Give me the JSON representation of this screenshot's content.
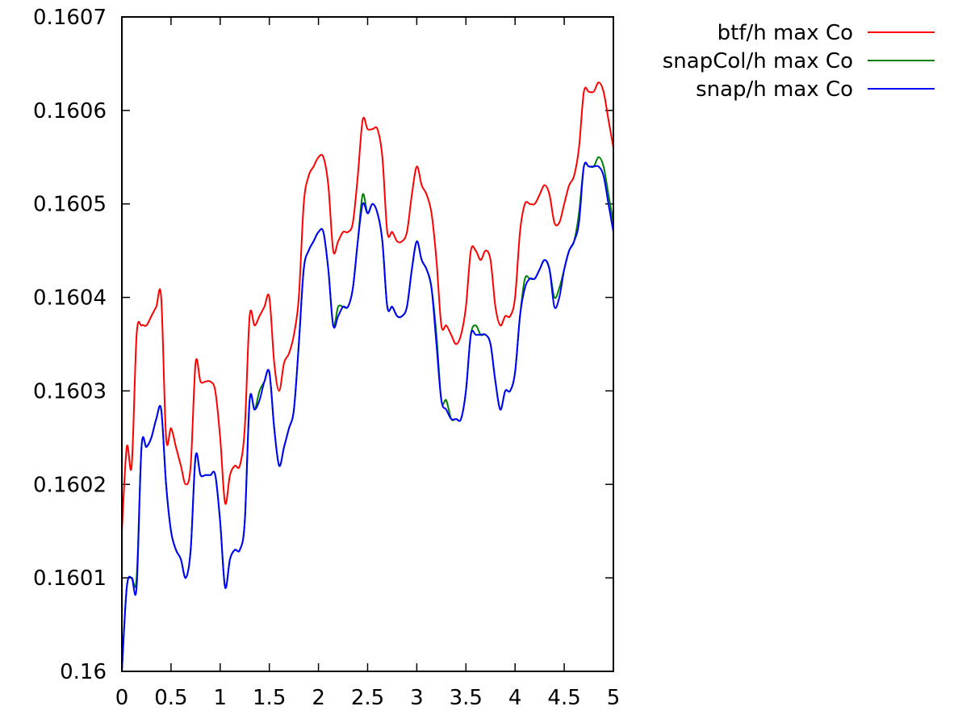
{
  "chart_data": {
    "type": "line",
    "title": "",
    "xlabel": "",
    "ylabel": "",
    "xlim": [
      0,
      5
    ],
    "ylim": [
      0.16,
      0.1607
    ],
    "grid": false,
    "legend_position": "top-right, outside plot",
    "x_ticks": [
      "0",
      "0.5",
      "1",
      "1.5",
      "2",
      "2.5",
      "3",
      "3.5",
      "4",
      "4.5",
      "5"
    ],
    "y_ticks": [
      "0.16",
      "0.1601",
      "0.1602",
      "0.1603",
      "0.1604",
      "0.1605",
      "0.1606",
      "0.1607"
    ],
    "series": [
      {
        "name": "btf/h max Co",
        "color": "#ff0000",
        "points": [
          [
            0.0,
            0.16015
          ],
          [
            0.05,
            0.16024
          ],
          [
            0.1,
            0.16022
          ],
          [
            0.15,
            0.16036
          ],
          [
            0.2,
            0.16037
          ],
          [
            0.25,
            0.16037
          ],
          [
            0.3,
            0.16038
          ],
          [
            0.35,
            0.16039
          ],
          [
            0.4,
            0.1604
          ],
          [
            0.45,
            0.16025
          ],
          [
            0.5,
            0.16026
          ],
          [
            0.55,
            0.16024
          ],
          [
            0.6,
            0.16022
          ],
          [
            0.65,
            0.1602
          ],
          [
            0.7,
            0.16022
          ],
          [
            0.75,
            0.16033
          ],
          [
            0.8,
            0.16031
          ],
          [
            0.85,
            0.16031
          ],
          [
            0.9,
            0.16031
          ],
          [
            0.95,
            0.1603
          ],
          [
            1.0,
            0.16025
          ],
          [
            1.05,
            0.16018
          ],
          [
            1.1,
            0.16021
          ],
          [
            1.15,
            0.16022
          ],
          [
            1.2,
            0.16022
          ],
          [
            1.25,
            0.16026
          ],
          [
            1.3,
            0.16038
          ],
          [
            1.35,
            0.16037
          ],
          [
            1.4,
            0.16038
          ],
          [
            1.45,
            0.16039
          ],
          [
            1.5,
            0.1604
          ],
          [
            1.55,
            0.16033
          ],
          [
            1.6,
            0.1603
          ],
          [
            1.65,
            0.16033
          ],
          [
            1.7,
            0.16034
          ],
          [
            1.75,
            0.16036
          ],
          [
            1.8,
            0.1604
          ],
          [
            1.85,
            0.1605
          ],
          [
            1.9,
            0.16053
          ],
          [
            1.95,
            0.16054
          ],
          [
            2.0,
            0.16055
          ],
          [
            2.05,
            0.16055
          ],
          [
            2.1,
            0.16052
          ],
          [
            2.15,
            0.16045
          ],
          [
            2.2,
            0.16046
          ],
          [
            2.25,
            0.16047
          ],
          [
            2.3,
            0.16047
          ],
          [
            2.35,
            0.16048
          ],
          [
            2.4,
            0.16053
          ],
          [
            2.45,
            0.16059
          ],
          [
            2.5,
            0.16058
          ],
          [
            2.55,
            0.16058
          ],
          [
            2.6,
            0.16058
          ],
          [
            2.65,
            0.16055
          ],
          [
            2.7,
            0.16047
          ],
          [
            2.75,
            0.16047
          ],
          [
            2.8,
            0.16046
          ],
          [
            2.85,
            0.16046
          ],
          [
            2.9,
            0.16047
          ],
          [
            2.95,
            0.16051
          ],
          [
            3.0,
            0.16054
          ],
          [
            3.05,
            0.16052
          ],
          [
            3.1,
            0.16051
          ],
          [
            3.15,
            0.16049
          ],
          [
            3.2,
            0.16044
          ],
          [
            3.25,
            0.16037
          ],
          [
            3.3,
            0.16037
          ],
          [
            3.35,
            0.16036
          ],
          [
            3.4,
            0.16035
          ],
          [
            3.45,
            0.16036
          ],
          [
            3.5,
            0.16039
          ],
          [
            3.55,
            0.16045
          ],
          [
            3.6,
            0.16045
          ],
          [
            3.65,
            0.16044
          ],
          [
            3.7,
            0.16045
          ],
          [
            3.75,
            0.16044
          ],
          [
            3.8,
            0.16039
          ],
          [
            3.85,
            0.16037
          ],
          [
            3.9,
            0.16038
          ],
          [
            3.95,
            0.16038
          ],
          [
            4.0,
            0.1604
          ],
          [
            4.05,
            0.16047
          ],
          [
            4.1,
            0.1605
          ],
          [
            4.15,
            0.1605
          ],
          [
            4.2,
            0.1605
          ],
          [
            4.25,
            0.16051
          ],
          [
            4.3,
            0.16052
          ],
          [
            4.35,
            0.16051
          ],
          [
            4.4,
            0.16048
          ],
          [
            4.45,
            0.16048
          ],
          [
            4.5,
            0.1605
          ],
          [
            4.55,
            0.16052
          ],
          [
            4.6,
            0.16053
          ],
          [
            4.65,
            0.16056
          ],
          [
            4.7,
            0.16062
          ],
          [
            4.75,
            0.16062
          ],
          [
            4.8,
            0.16062
          ],
          [
            4.85,
            0.16063
          ],
          [
            4.9,
            0.16062
          ],
          [
            4.95,
            0.16059
          ],
          [
            5.0,
            0.16056
          ]
        ]
      },
      {
        "name": "snapCol/h max Co",
        "color": "#008000",
        "points": [
          [
            0.0,
            0.16
          ],
          [
            0.05,
            0.16009
          ],
          [
            0.1,
            0.1601
          ],
          [
            0.15,
            0.1601
          ],
          [
            0.2,
            0.16024
          ],
          [
            0.25,
            0.16024
          ],
          [
            0.3,
            0.16025
          ],
          [
            0.35,
            0.16027
          ],
          [
            0.4,
            0.16028
          ],
          [
            0.45,
            0.1602
          ],
          [
            0.5,
            0.16015
          ],
          [
            0.55,
            0.16013
          ],
          [
            0.6,
            0.16012
          ],
          [
            0.65,
            0.1601
          ],
          [
            0.7,
            0.16013
          ],
          [
            0.75,
            0.16023
          ],
          [
            0.8,
            0.16021
          ],
          [
            0.85,
            0.16021
          ],
          [
            0.9,
            0.16021
          ],
          [
            0.95,
            0.16021
          ],
          [
            1.0,
            0.16016
          ],
          [
            1.05,
            0.16009
          ],
          [
            1.1,
            0.16012
          ],
          [
            1.15,
            0.16013
          ],
          [
            1.2,
            0.16013
          ],
          [
            1.25,
            0.16016
          ],
          [
            1.3,
            0.16029
          ],
          [
            1.35,
            0.16028
          ],
          [
            1.4,
            0.1603
          ],
          [
            1.45,
            0.16031
          ],
          [
            1.5,
            0.16032
          ],
          [
            1.55,
            0.16026
          ],
          [
            1.6,
            0.16022
          ],
          [
            1.65,
            0.16024
          ],
          [
            1.7,
            0.16026
          ],
          [
            1.75,
            0.16028
          ],
          [
            1.8,
            0.16035
          ],
          [
            1.85,
            0.16043
          ],
          [
            1.9,
            0.16045
          ],
          [
            1.95,
            0.16046
          ],
          [
            2.0,
            0.16047
          ],
          [
            2.05,
            0.16047
          ],
          [
            2.1,
            0.16043
          ],
          [
            2.15,
            0.16037
          ],
          [
            2.2,
            0.16039
          ],
          [
            2.25,
            0.16039
          ],
          [
            2.3,
            0.16039
          ],
          [
            2.35,
            0.16041
          ],
          [
            2.4,
            0.16046
          ],
          [
            2.45,
            0.16051
          ],
          [
            2.5,
            0.16049
          ],
          [
            2.55,
            0.1605
          ],
          [
            2.6,
            0.16049
          ],
          [
            2.65,
            0.16046
          ],
          [
            2.7,
            0.16039
          ],
          [
            2.75,
            0.16039
          ],
          [
            2.8,
            0.16038
          ],
          [
            2.85,
            0.16038
          ],
          [
            2.9,
            0.16039
          ],
          [
            2.95,
            0.16043
          ],
          [
            3.0,
            0.16046
          ],
          [
            3.05,
            0.16044
          ],
          [
            3.1,
            0.16043
          ],
          [
            3.15,
            0.16041
          ],
          [
            3.2,
            0.16036
          ],
          [
            3.25,
            0.16029
          ],
          [
            3.3,
            0.16029
          ],
          [
            3.35,
            0.16027
          ],
          [
            3.4,
            0.16027
          ],
          [
            3.45,
            0.16027
          ],
          [
            3.5,
            0.1603
          ],
          [
            3.55,
            0.16036
          ],
          [
            3.6,
            0.16037
          ],
          [
            3.65,
            0.16036
          ],
          [
            3.7,
            0.16036
          ],
          [
            3.75,
            0.16035
          ],
          [
            3.8,
            0.16031
          ],
          [
            3.85,
            0.16028
          ],
          [
            3.9,
            0.1603
          ],
          [
            3.95,
            0.1603
          ],
          [
            4.0,
            0.16032
          ],
          [
            4.05,
            0.16038
          ],
          [
            4.1,
            0.16042
          ],
          [
            4.15,
            0.16042
          ],
          [
            4.2,
            0.16042
          ],
          [
            4.25,
            0.16043
          ],
          [
            4.3,
            0.16044
          ],
          [
            4.35,
            0.16043
          ],
          [
            4.4,
            0.1604
          ],
          [
            4.45,
            0.16041
          ],
          [
            4.5,
            0.16043
          ],
          [
            4.55,
            0.16045
          ],
          [
            4.6,
            0.16046
          ],
          [
            4.65,
            0.16049
          ],
          [
            4.7,
            0.16054
          ],
          [
            4.75,
            0.16054
          ],
          [
            4.8,
            0.16054
          ],
          [
            4.85,
            0.16055
          ],
          [
            4.9,
            0.16054
          ],
          [
            4.95,
            0.16051
          ],
          [
            5.0,
            0.16048
          ]
        ]
      },
      {
        "name": "snap/h max Co",
        "color": "#0000ff",
        "points": [
          [
            0.0,
            0.16
          ],
          [
            0.05,
            0.16009
          ],
          [
            0.1,
            0.1601
          ],
          [
            0.15,
            0.16009
          ],
          [
            0.2,
            0.16024
          ],
          [
            0.25,
            0.16024
          ],
          [
            0.3,
            0.16025
          ],
          [
            0.35,
            0.16027
          ],
          [
            0.4,
            0.16028
          ],
          [
            0.45,
            0.1602
          ],
          [
            0.5,
            0.16015
          ],
          [
            0.55,
            0.16013
          ],
          [
            0.6,
            0.16012
          ],
          [
            0.65,
            0.1601
          ],
          [
            0.7,
            0.16013
          ],
          [
            0.75,
            0.16023
          ],
          [
            0.8,
            0.16021
          ],
          [
            0.85,
            0.16021
          ],
          [
            0.9,
            0.16021
          ],
          [
            0.95,
            0.16021
          ],
          [
            1.0,
            0.16016
          ],
          [
            1.05,
            0.16009
          ],
          [
            1.1,
            0.16012
          ],
          [
            1.15,
            0.16013
          ],
          [
            1.2,
            0.16013
          ],
          [
            1.25,
            0.16016
          ],
          [
            1.3,
            0.16029
          ],
          [
            1.35,
            0.16028
          ],
          [
            1.4,
            0.16029
          ],
          [
            1.45,
            0.16031
          ],
          [
            1.5,
            0.16032
          ],
          [
            1.55,
            0.16026
          ],
          [
            1.6,
            0.16022
          ],
          [
            1.65,
            0.16024
          ],
          [
            1.7,
            0.16026
          ],
          [
            1.75,
            0.16028
          ],
          [
            1.8,
            0.16035
          ],
          [
            1.85,
            0.16043
          ],
          [
            1.9,
            0.16045
          ],
          [
            1.95,
            0.16046
          ],
          [
            2.0,
            0.16047
          ],
          [
            2.05,
            0.16047
          ],
          [
            2.1,
            0.16043
          ],
          [
            2.15,
            0.16037
          ],
          [
            2.2,
            0.16038
          ],
          [
            2.25,
            0.16039
          ],
          [
            2.3,
            0.16039
          ],
          [
            2.35,
            0.16041
          ],
          [
            2.4,
            0.16046
          ],
          [
            2.45,
            0.1605
          ],
          [
            2.5,
            0.16049
          ],
          [
            2.55,
            0.1605
          ],
          [
            2.6,
            0.16049
          ],
          [
            2.65,
            0.16046
          ],
          [
            2.7,
            0.16039
          ],
          [
            2.75,
            0.16039
          ],
          [
            2.8,
            0.16038
          ],
          [
            2.85,
            0.16038
          ],
          [
            2.9,
            0.16039
          ],
          [
            2.95,
            0.16043
          ],
          [
            3.0,
            0.16046
          ],
          [
            3.05,
            0.16044
          ],
          [
            3.1,
            0.16043
          ],
          [
            3.15,
            0.16041
          ],
          [
            3.2,
            0.16035
          ],
          [
            3.25,
            0.16029
          ],
          [
            3.3,
            0.16028
          ],
          [
            3.35,
            0.16027
          ],
          [
            3.4,
            0.16027
          ],
          [
            3.45,
            0.16027
          ],
          [
            3.5,
            0.1603
          ],
          [
            3.55,
            0.16036
          ],
          [
            3.6,
            0.16036
          ],
          [
            3.65,
            0.16036
          ],
          [
            3.7,
            0.16036
          ],
          [
            3.75,
            0.16035
          ],
          [
            3.8,
            0.16031
          ],
          [
            3.85,
            0.16028
          ],
          [
            3.9,
            0.1603
          ],
          [
            3.95,
            0.1603
          ],
          [
            4.0,
            0.16032
          ],
          [
            4.05,
            0.16038
          ],
          [
            4.1,
            0.16041
          ],
          [
            4.15,
            0.16042
          ],
          [
            4.2,
            0.16042
          ],
          [
            4.25,
            0.16043
          ],
          [
            4.3,
            0.16044
          ],
          [
            4.35,
            0.16043
          ],
          [
            4.4,
            0.16039
          ],
          [
            4.45,
            0.1604
          ],
          [
            4.5,
            0.16043
          ],
          [
            4.55,
            0.16045
          ],
          [
            4.6,
            0.16046
          ],
          [
            4.65,
            0.16048
          ],
          [
            4.7,
            0.16054
          ],
          [
            4.75,
            0.16054
          ],
          [
            4.8,
            0.16054
          ],
          [
            4.85,
            0.16054
          ],
          [
            4.9,
            0.16053
          ],
          [
            4.95,
            0.1605
          ],
          [
            5.0,
            0.16047
          ]
        ]
      }
    ]
  }
}
